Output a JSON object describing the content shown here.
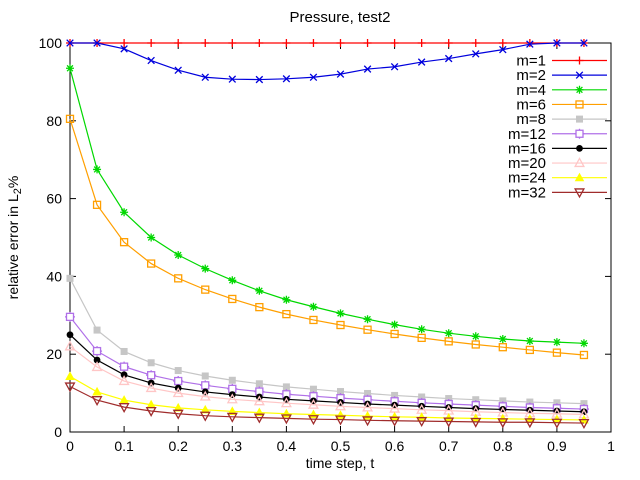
{
  "chart_data": {
    "type": "line",
    "title": "Pressure, test2",
    "xlabel": "time step, t",
    "ylabel_parts": {
      "prefix": "relative error in L",
      "sub": "2",
      "suffix": "%"
    },
    "xlim": [
      0,
      1
    ],
    "ylim": [
      0,
      100
    ],
    "grid": false,
    "legend_position": "top-right-inside",
    "xticks": {
      "values": [
        0,
        0.1,
        0.2,
        0.3,
        0.4,
        0.5,
        0.6,
        0.7,
        0.8,
        0.9,
        1
      ],
      "labels": [
        "0",
        "0.1",
        "0.2",
        "0.3",
        "0.4",
        "0.5",
        "0.6",
        "0.7",
        "0.8",
        "0.9",
        "1"
      ]
    },
    "yticks": {
      "values": [
        0,
        20,
        40,
        60,
        80,
        100
      ],
      "labels": [
        "0",
        "20",
        "40",
        "60",
        "80",
        "100"
      ]
    },
    "x": [
      0,
      0.05,
      0.1,
      0.15,
      0.2,
      0.25,
      0.3,
      0.35,
      0.4,
      0.45,
      0.5,
      0.55,
      0.6,
      0.65,
      0.7,
      0.75,
      0.8,
      0.85,
      0.9,
      0.95
    ],
    "series": [
      {
        "name": "m=1",
        "color": "#ff0000",
        "marker": "plus",
        "values": [
          100,
          100,
          100,
          100,
          100,
          100,
          100,
          100,
          100,
          100,
          100,
          100,
          100,
          100,
          100,
          100,
          100,
          100,
          100,
          100
        ]
      },
      {
        "name": "m=2",
        "color": "#0000dd",
        "marker": "x",
        "values": [
          100,
          100,
          98.5,
          95.5,
          93.0,
          91.2,
          90.7,
          90.6,
          90.8,
          91.2,
          92.0,
          93.3,
          93.9,
          95.1,
          96.0,
          97.2,
          98.3,
          99.7,
          100,
          100
        ]
      },
      {
        "name": "m=4",
        "color": "#00d800",
        "marker": "asterisk",
        "values": [
          93.5,
          67.5,
          56.5,
          50.0,
          45.5,
          42.0,
          39.0,
          36.3,
          34.0,
          32.2,
          30.5,
          29.0,
          27.6,
          26.4,
          25.4,
          24.6,
          23.9,
          23.4,
          23.1,
          22.8
        ]
      },
      {
        "name": "m=6",
        "color": "#ff9f00",
        "marker": "square-open",
        "values": [
          80.5,
          58.4,
          48.8,
          43.3,
          39.5,
          36.6,
          34.2,
          32.1,
          30.3,
          28.8,
          27.5,
          26.3,
          25.2,
          24.2,
          23.3,
          22.5,
          21.8,
          21.1,
          20.4,
          19.8
        ]
      },
      {
        "name": "m=8",
        "color": "#c6c6c6",
        "marker": "square-filled",
        "values": [
          39.5,
          26.2,
          20.7,
          17.8,
          15.8,
          14.4,
          13.3,
          12.4,
          11.6,
          11.0,
          10.4,
          9.9,
          9.4,
          9.0,
          8.6,
          8.3,
          8.0,
          7.7,
          7.5,
          7.3
        ]
      },
      {
        "name": "m=12",
        "color": "#b070e8",
        "marker": "boxplus-open",
        "values": [
          29.6,
          20.8,
          16.8,
          14.6,
          13.1,
          12.0,
          11.1,
          10.4,
          9.7,
          9.2,
          8.7,
          8.3,
          7.9,
          7.5,
          7.2,
          6.9,
          6.6,
          6.3,
          6.1,
          5.9
        ]
      },
      {
        "name": "m=16",
        "color": "#000000",
        "marker": "circle-filled",
        "values": [
          25.0,
          18.5,
          14.7,
          12.6,
          11.3,
          10.3,
          9.6,
          9.0,
          8.4,
          8.0,
          7.6,
          7.2,
          6.9,
          6.6,
          6.3,
          6.0,
          5.8,
          5.6,
          5.4,
          5.2
        ]
      },
      {
        "name": "m=20",
        "color": "#ffc6c6",
        "marker": "triangle-up-open",
        "values": [
          22.0,
          16.7,
          13.1,
          11.3,
          10.0,
          9.1,
          8.4,
          7.9,
          7.4,
          7.0,
          6.6,
          6.3,
          6.0,
          5.7,
          5.5,
          5.2,
          5.0,
          4.8,
          4.7,
          4.5
        ]
      },
      {
        "name": "m=24",
        "color": "#ffff00",
        "marker": "triangle-up-filled",
        "values": [
          14.3,
          10.3,
          8.2,
          7.0,
          6.2,
          5.7,
          5.3,
          5.0,
          4.7,
          4.5,
          4.3,
          4.1,
          3.9,
          3.8,
          3.6,
          3.5,
          3.4,
          3.3,
          3.2,
          3.1
        ]
      },
      {
        "name": "m=32",
        "color": "#a02c2c",
        "marker": "triangle-down-open",
        "values": [
          11.7,
          8.2,
          6.4,
          5.4,
          4.7,
          4.2,
          3.9,
          3.7,
          3.5,
          3.3,
          3.2,
          3.0,
          2.9,
          2.8,
          2.7,
          2.6,
          2.5,
          2.5,
          2.4,
          2.3
        ]
      }
    ]
  }
}
